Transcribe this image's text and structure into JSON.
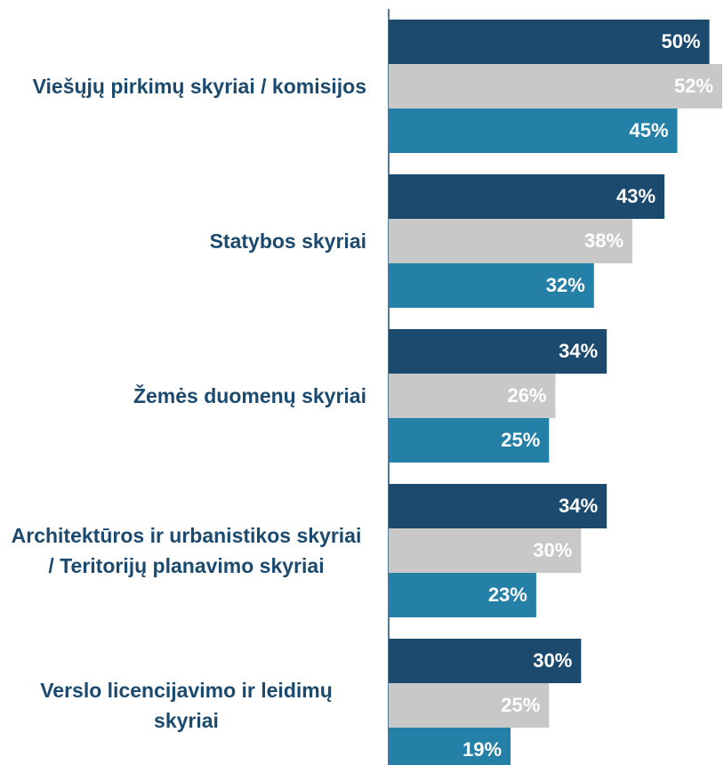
{
  "chart_data": {
    "type": "bar",
    "orientation": "horizontal",
    "categories": [
      "Viešųjų pirkimų skyriai / komisijos",
      "Statybos skyriai",
      "Žemės duomenų skyriai",
      "Architektūros ir urbanistikos skyriai / Teritorijų planavimo skyriai",
      "Verslo licencijavimo ir leidimų skyriai"
    ],
    "series": [
      {
        "color": "#1b4a6e",
        "values": [
          50,
          43,
          34,
          34,
          30
        ],
        "value_labels": [
          "50%",
          "43%",
          "34%",
          "34%",
          "30%"
        ]
      },
      {
        "color": "#c8c8c8",
        "values": [
          52,
          38,
          26,
          30,
          25
        ],
        "value_labels": [
          "52%",
          "38%",
          "26%",
          "30%",
          "25%"
        ]
      },
      {
        "color": "#2580a8",
        "values": [
          45,
          32,
          25,
          23,
          19
        ],
        "value_labels": [
          "45%",
          "32%",
          "25%",
          "23%",
          "19%"
        ]
      }
    ],
    "xlim": [
      0,
      52
    ]
  }
}
